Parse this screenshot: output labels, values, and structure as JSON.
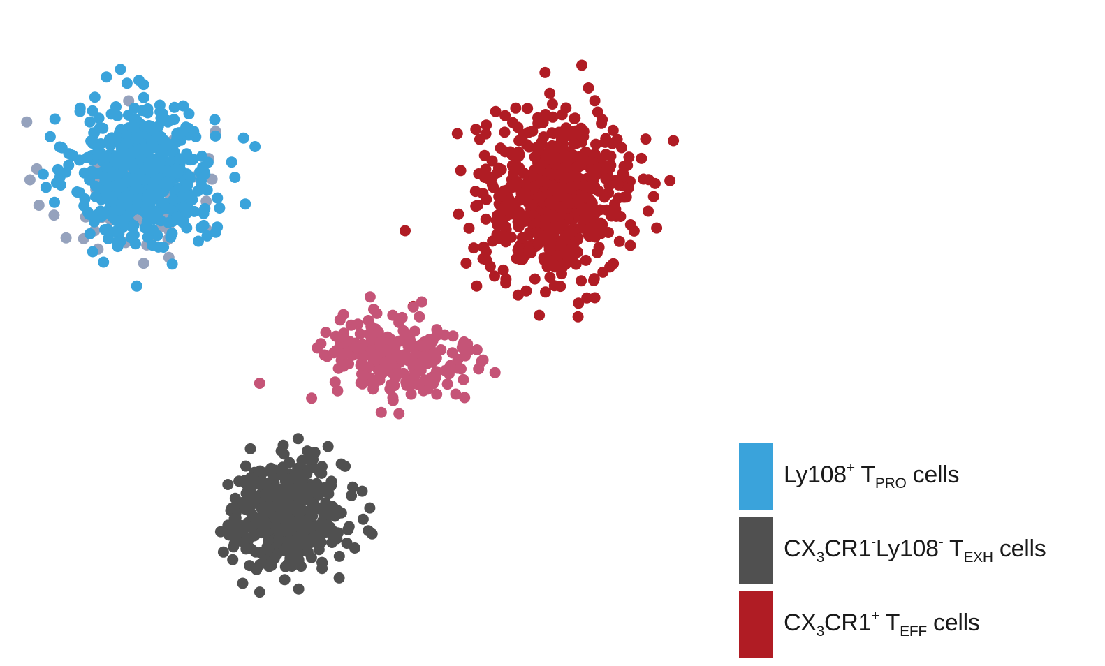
{
  "chart_data": {
    "type": "scatter",
    "title": "",
    "xlabel": "",
    "ylabel": "",
    "axes_visible": false,
    "grid": false,
    "legend_position": "bottom-right",
    "xlim": [
      -10,
      10
    ],
    "ylim": [
      -10,
      10
    ],
    "series": [
      {
        "name": "Ly108+ TPRO cells",
        "legend": {
          "pre": "Ly108",
          "sup1": "+",
          "mid": " T",
          "sub": "PRO",
          "post": " cells"
        },
        "color": "#3aa3db",
        "cluster": {
          "cx": -6.2,
          "cy": 4.9,
          "sx": 1.55,
          "sy": 1.7,
          "n": 560
        }
      },
      {
        "name": "CX3CR1-Ly108- TEXH cells",
        "legend": {
          "pre": "CX",
          "sub1": "3",
          "mid1": "CR1",
          "sup1": "-",
          "mid2": "Ly108",
          "sup2": "-",
          "mid3": " T",
          "sub": "EXH",
          "post": " cells"
        },
        "color": "#505050",
        "cluster": {
          "cx": -2.2,
          "cy": -5.6,
          "sx": 1.3,
          "sy": 1.35,
          "n": 430
        }
      },
      {
        "name": "CX3CR1+ TEFF cells",
        "legend": {
          "pre": "CX",
          "sub1": "3",
          "mid1": "CR1",
          "sup1": "+",
          "mid2": " T",
          "sub": "EFF",
          "post": " cells"
        },
        "color": "#b01c24",
        "cluster": {
          "cx": 5.3,
          "cy": 4.2,
          "sx": 1.65,
          "sy": 1.95,
          "n": 620
        }
      }
    ],
    "unlabeled_groups": [
      {
        "color": "#c55477",
        "note": "bridge cells",
        "cluster": {
          "cx": 0.8,
          "cy": -0.8,
          "sx": 1.9,
          "sy": 1.2,
          "n": 210
        }
      },
      {
        "color": "#95a2bd",
        "note": "scattered",
        "cluster": {
          "cx": -6.6,
          "cy": 4.3,
          "sx": 1.9,
          "sy": 1.8,
          "n": 70
        }
      }
    ]
  }
}
